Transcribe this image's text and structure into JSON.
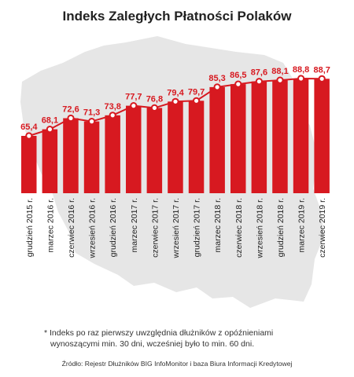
{
  "colors": {
    "bar": "#d71920",
    "line": "#d71920",
    "map": "#e6e6e6",
    "text": "#222222"
  },
  "chart_data": {
    "type": "bar",
    "title": "Indeks Zaległych Płatności Polaków",
    "categories": [
      "grudzień 2015 r.",
      "marzec 2016 r.",
      "czerwiec 2016 r.",
      "wrzesień 2016 r.",
      "grudzień 2016 r.",
      "marzec 2017 r.",
      "czerwiec 2017 r.",
      "wrzesień 2017 r.",
      "grudzień 2017 r.",
      "marzec 2018 r.",
      "czerwiec 2018 r.",
      "wrzesień 2018 r.",
      "grudzień 2018 r.",
      "marzec 2019 r.",
      "czerwiec 2019 r."
    ],
    "values": [
      65.4,
      68.1,
      72.6,
      71.3,
      73.8,
      77.7,
      76.8,
      79.4,
      79.7,
      85.3,
      86.5,
      87.6,
      88.1,
      88.8,
      88.7
    ],
    "value_labels": [
      "65,4",
      "68,1",
      "72,6",
      "71,3",
      "73,8",
      "77,7",
      "76,8",
      "79,4",
      "79,7",
      "85,3",
      "86,5",
      "87,6",
      "88,1",
      "88,8",
      "88,7"
    ],
    "line_overlay": true,
    "grid": false,
    "legend": "none"
  },
  "footnote": {
    "line1": "* Indeks po raz pierwszy uwzględnia dłużników z opóźnieniami",
    "line2": "wynoszącymi min. 30 dni, wcześniej było to min. 60 dni."
  },
  "source": "Źródło: Rejestr Dłużników BIG InfoMonitor i baza Biura Informacji Kredytowej"
}
